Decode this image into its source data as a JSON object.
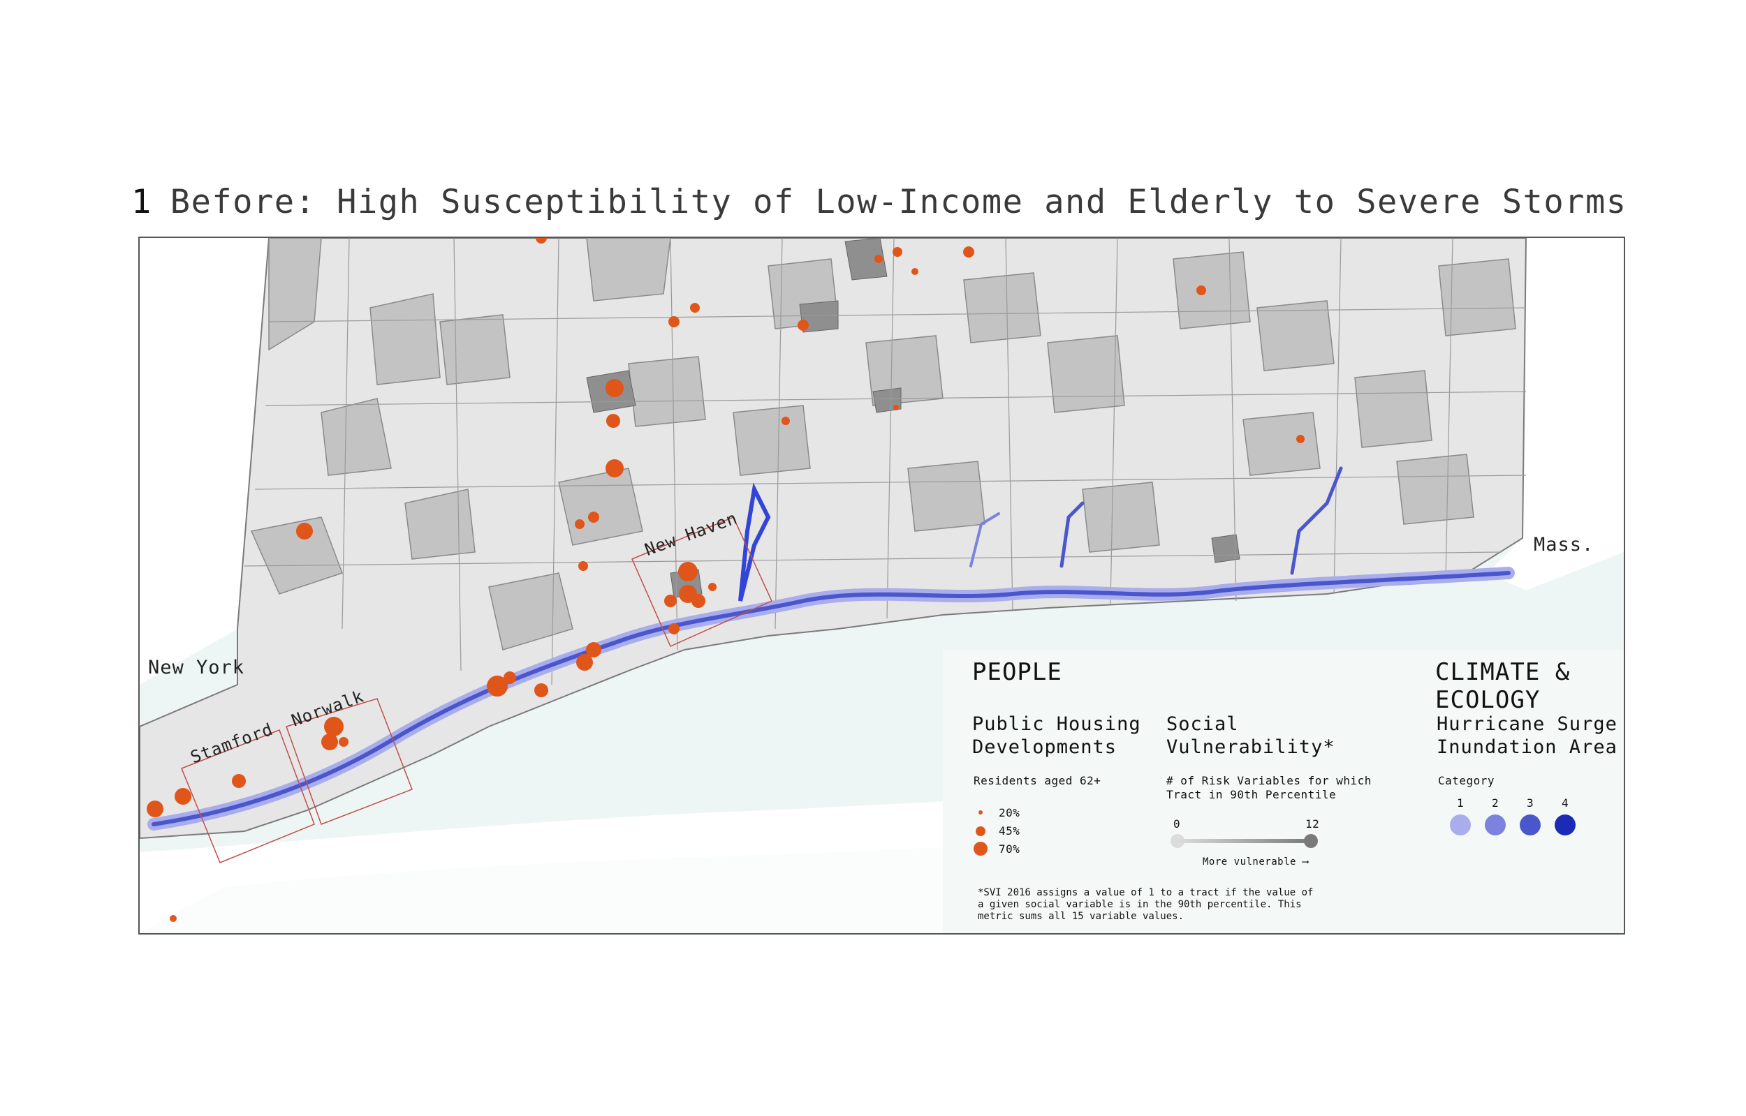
{
  "title": {
    "number": "1",
    "text": "Before: High Susceptibility of Low-Income and Elderly to Severe Storms"
  },
  "map": {
    "labels": {
      "new_york": "New York",
      "mass": "Mass.",
      "new_haven": "New Haven",
      "norwalk": "Norwalk",
      "stamford": "Stamford"
    },
    "colors": {
      "land_light": "#e6e6e6",
      "land_medium": "#c3c3c3",
      "land_dark": "#9a9a9a",
      "water": "#eef6f5",
      "housing_dot": "#e0561a",
      "surge": "#3345d6",
      "inset_box": "#c0504d"
    }
  },
  "legend": {
    "people_heading": "PEOPLE",
    "public_housing": {
      "title": "Public Housing Developments",
      "subtitle": "Residents aged 62+",
      "items": [
        "20%",
        "45%",
        "70%"
      ]
    },
    "social_vulnerability": {
      "title": "Social Vulnerability*",
      "subtitle": "# of Risk Variables for which Tract in 90th Percentile",
      "min": "0",
      "max": "12",
      "arrow_label": "More vulnerable",
      "arrow_glyph": "⟶"
    },
    "climate_heading": "CLIMATE & ECOLOGY",
    "surge": {
      "title": "Hurricane Surge Inundation Area",
      "subtitle": "Category",
      "categories": [
        "1",
        "2",
        "3",
        "4"
      ],
      "category_colors": [
        "#a9adec",
        "#7b83dc",
        "#4a57cc",
        "#1b2bb5"
      ]
    },
    "footnote": "*SVI 2016 assigns a value of 1 to a tract if the value of\na given social variable is in the 90th percentile. This\nmetric sums all 15 variable values."
  }
}
